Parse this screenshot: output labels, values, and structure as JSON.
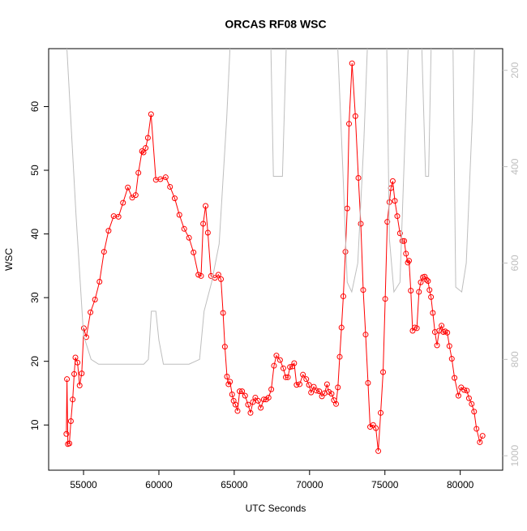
{
  "chart_data": {
    "type": "line",
    "title": "ORCAS RF08 WSC",
    "x_label": "UTC Seconds",
    "y_label": "WSC",
    "xlim": [
      52684,
      82816
    ],
    "xticks": [
      55000,
      60000,
      65000,
      70000,
      75000,
      80000
    ],
    "ylim": [
      2.9,
      69.1
    ],
    "yticks": [
      10,
      20,
      30,
      40,
      50,
      60
    ],
    "y2lim": [
      1030,
      155
    ],
    "y2ticks": [
      200,
      400,
      600,
      800,
      1000
    ],
    "series": [
      {
        "color": "#ff0000",
        "marker": "circle",
        "x": [
          53860,
          53900,
          53960,
          54060,
          54160,
          54280,
          54380,
          54460,
          54600,
          54740,
          54880,
          55020,
          55180,
          55460,
          55760,
          56060,
          56360,
          56660,
          57000,
          57320,
          57620,
          57940,
          58230,
          58460,
          58640,
          58880,
          58980,
          59120,
          59270,
          59480,
          59800,
          60100,
          60450,
          60740,
          61050,
          61360,
          61680,
          62000,
          62300,
          62620,
          62800,
          62940,
          63100,
          63250,
          63460,
          63720,
          63950,
          64120,
          64260,
          64380,
          64520,
          64620,
          64720,
          64860,
          64960,
          65080,
          65220,
          65360,
          65520,
          65720,
          65920,
          66080,
          66240,
          66400,
          66580,
          66760,
          66960,
          67120,
          67280,
          67460,
          67640,
          67800,
          68040,
          68260,
          68420,
          68560,
          68700,
          68860,
          68980,
          69140,
          69340,
          69560,
          69780,
          69960,
          70100,
          70280,
          70460,
          70640,
          70820,
          71000,
          71160,
          71280,
          71460,
          71620,
          71760,
          71880,
          72000,
          72120,
          72240,
          72380,
          72500,
          72620,
          72820,
          73040,
          73240,
          73400,
          73560,
          73720,
          73880,
          74020,
          74220,
          74400,
          74560,
          74720,
          74880,
          75020,
          75160,
          75300,
          75400,
          75520,
          75660,
          75820,
          76000,
          76160,
          76280,
          76400,
          76520,
          76600,
          76720,
          76840,
          76980,
          77120,
          77260,
          77380,
          77520,
          77640,
          77760,
          77860,
          77960,
          78060,
          78180,
          78320,
          78460,
          78600,
          78760,
          78880,
          79000,
          79140,
          79280,
          79440,
          79620,
          79880,
          80060,
          80260,
          80440,
          80580,
          80760,
          80920,
          81080,
          81300,
          81480
        ],
        "values": [
          8.6,
          17.2,
          7.0,
          7.1,
          10.6,
          14.0,
          18.0,
          20.6,
          19.8,
          16.2,
          18.1,
          25.2,
          23.8,
          27.7,
          29.7,
          32.5,
          37.2,
          40.5,
          42.8,
          42.7,
          44.9,
          47.3,
          45.7,
          46.1,
          49.6,
          53.0,
          52.8,
          53.5,
          55.1,
          58.8,
          48.5,
          48.6,
          48.9,
          47.4,
          45.6,
          43.0,
          40.8,
          39.4,
          37.1,
          33.6,
          33.4,
          41.6,
          44.4,
          40.2,
          33.4,
          33.1,
          33.6,
          32.9,
          27.6,
          22.3,
          17.6,
          16.4,
          16.8,
          14.8,
          13.8,
          13.2,
          12.2,
          15.3,
          15.3,
          14.6,
          13.2,
          11.9,
          13.6,
          14.3,
          13.8,
          12.7,
          14.0,
          14.0,
          14.3,
          15.6,
          19.3,
          20.9,
          20.2,
          18.9,
          17.5,
          17.5,
          19.1,
          19.2,
          19.7,
          16.3,
          16.4,
          17.9,
          17.2,
          16.3,
          15.1,
          16.0,
          15.4,
          15.3,
          14.5,
          15.0,
          16.4,
          15.2,
          14.9,
          13.9,
          13.3,
          15.9,
          20.7,
          25.3,
          30.2,
          37.2,
          44.0,
          57.3,
          66.8,
          58.5,
          48.8,
          41.6,
          31.2,
          24.2,
          16.6,
          9.7,
          10.0,
          9.5,
          5.9,
          11.9,
          18.3,
          29.8,
          41.9,
          45.0,
          47.2,
          48.3,
          45.2,
          42.8,
          40.1,
          38.9,
          38.9,
          36.9,
          35.5,
          35.8,
          31.1,
          24.8,
          25.3,
          25.2,
          30.9,
          32.4,
          33.2,
          33.3,
          32.8,
          32.6,
          31.2,
          30.1,
          27.6,
          24.6,
          22.5,
          24.8,
          25.6,
          24.6,
          24.7,
          24.5,
          22.4,
          20.4,
          17.4,
          14.6,
          15.9,
          15.5,
          15.4,
          14.2,
          13.3,
          12.1,
          9.4,
          7.3,
          8.3
        ]
      },
      {
        "color": "#bebebe",
        "axis": "y2",
        "x": [
          53800,
          54500,
          55000,
          55500,
          56000,
          59000,
          59300,
          59500,
          59800,
          60000,
          60300,
          62000,
          62700,
          63000,
          63500,
          64000,
          64500,
          64800,
          67400,
          67600,
          68200,
          68500,
          71800,
          72200,
          72500,
          72800,
          73200,
          73600,
          73900,
          75100,
          75300,
          75600,
          76000,
          76600,
          77400,
          77700,
          77900,
          78100,
          79500,
          79700,
          80100,
          80400,
          80800,
          81000,
          81700
        ],
        "values": [
          100,
          500,
          750,
          800,
          810,
          810,
          800,
          700,
          700,
          760,
          810,
          810,
          800,
          700,
          640,
          560,
          300,
          100,
          100,
          420,
          420,
          100,
          100,
          400,
          640,
          660,
          600,
          350,
          100,
          100,
          550,
          660,
          640,
          100,
          100,
          420,
          420,
          100,
          100,
          650,
          660,
          600,
          300,
          100,
          100
        ]
      }
    ]
  }
}
